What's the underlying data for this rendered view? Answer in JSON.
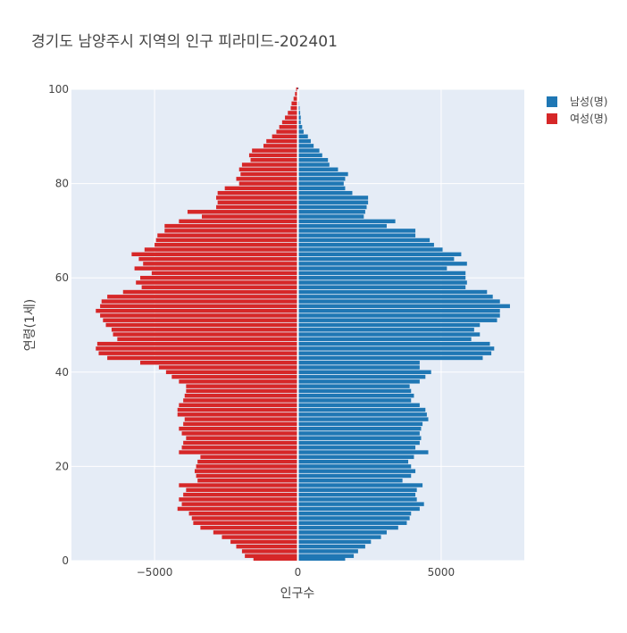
{
  "chart_data": {
    "type": "bar",
    "orientation": "horizontal",
    "title": "경기도 남양주시 지역의 인구 피라미드-202401",
    "xlabel": "인구수",
    "ylabel": "연령(1세)",
    "xlim": [
      -7900,
      7900
    ],
    "ylim": [
      0,
      100
    ],
    "x_ticks": [
      {
        "value": -5000,
        "label": "−5000"
      },
      {
        "value": 0,
        "label": "0"
      },
      {
        "value": 5000,
        "label": "5000"
      }
    ],
    "y_ticks": [
      {
        "value": 0,
        "label": "0"
      },
      {
        "value": 20,
        "label": "20"
      },
      {
        "value": 40,
        "label": "40"
      },
      {
        "value": 60,
        "label": "60"
      },
      {
        "value": 80,
        "label": "80"
      },
      {
        "value": 100,
        "label": "100"
      }
    ],
    "grid": true,
    "legend_position": "top-right",
    "ages": [
      0,
      1,
      2,
      3,
      4,
      5,
      6,
      7,
      8,
      9,
      10,
      11,
      12,
      13,
      14,
      15,
      16,
      17,
      18,
      19,
      20,
      21,
      22,
      23,
      24,
      25,
      26,
      27,
      28,
      29,
      30,
      31,
      32,
      33,
      34,
      35,
      36,
      37,
      38,
      39,
      40,
      41,
      42,
      43,
      44,
      45,
      46,
      47,
      48,
      49,
      50,
      51,
      52,
      53,
      54,
      55,
      56,
      57,
      58,
      59,
      60,
      61,
      62,
      63,
      64,
      65,
      66,
      67,
      68,
      69,
      70,
      71,
      72,
      73,
      74,
      75,
      76,
      77,
      78,
      79,
      80,
      81,
      82,
      83,
      84,
      85,
      86,
      87,
      88,
      89,
      90,
      91,
      92,
      93,
      94,
      95,
      96,
      97,
      98,
      99,
      100
    ],
    "series": [
      {
        "name": "남성(명)",
        "color": "#1f77b4",
        "values": [
          1650,
          1950,
          2100,
          2350,
          2550,
          2900,
          3100,
          3500,
          3800,
          3900,
          3950,
          4250,
          4400,
          4150,
          4100,
          4150,
          4350,
          3650,
          3950,
          4100,
          3950,
          3850,
          4050,
          4550,
          4100,
          4250,
          4300,
          4250,
          4300,
          4350,
          4550,
          4500,
          4450,
          4250,
          3950,
          4050,
          3950,
          3900,
          4250,
          4450,
          4650,
          4250,
          4250,
          6450,
          6750,
          6850,
          6700,
          6050,
          6350,
          6150,
          6350,
          6950,
          7050,
          7050,
          7400,
          7050,
          6800,
          6600,
          5850,
          5900,
          5850,
          5850,
          5200,
          5900,
          5450,
          5700,
          5050,
          4750,
          4600,
          4100,
          4100,
          3100,
          3400,
          2300,
          2350,
          2400,
          2450,
          2450,
          1900,
          1650,
          1600,
          1650,
          1750,
          1400,
          1100,
          1050,
          850,
          750,
          550,
          450,
          350,
          200,
          150,
          100,
          100,
          80,
          60,
          40,
          30,
          20,
          20
        ]
      },
      {
        "name": "여성(명)",
        "color": "#d62728",
        "values": [
          1550,
          1850,
          1950,
          2150,
          2350,
          2650,
          2950,
          3400,
          3650,
          3700,
          3800,
          4200,
          4050,
          4150,
          4000,
          3900,
          4150,
          3500,
          3550,
          3600,
          3550,
          3500,
          3400,
          4150,
          4050,
          4000,
          3900,
          4050,
          4150,
          4000,
          3950,
          4200,
          4200,
          4150,
          4000,
          3950,
          3900,
          3900,
          4150,
          4400,
          4600,
          4850,
          5500,
          6650,
          6950,
          7050,
          7000,
          6300,
          6450,
          6500,
          6700,
          6800,
          6900,
          7050,
          6900,
          6850,
          6650,
          6100,
          5450,
          5650,
          5500,
          5100,
          5700,
          5400,
          5550,
          5800,
          5350,
          5000,
          4950,
          4900,
          4650,
          4650,
          4150,
          3350,
          3850,
          2850,
          2800,
          2850,
          2800,
          2550,
          2050,
          2150,
          2000,
          2050,
          1950,
          1650,
          1700,
          1600,
          1200,
          1100,
          900,
          750,
          650,
          550,
          450,
          350,
          250,
          220,
          150,
          100,
          60
        ]
      }
    ]
  }
}
